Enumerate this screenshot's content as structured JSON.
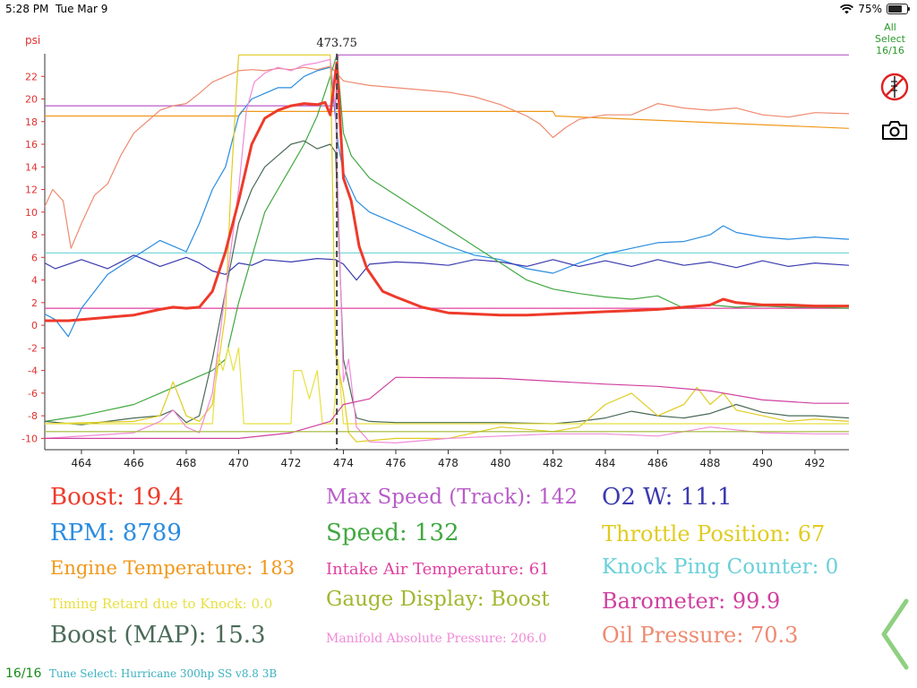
{
  "status": {
    "time": "5:28 PM",
    "date": "Tue Mar 9",
    "battery": "75%",
    "battery_level": 0.75
  },
  "chart_data": {
    "type": "line",
    "y_unit_label": "psi",
    "cursor_label": "473.75",
    "cursor_x": 473.75,
    "xlim": [
      462.6,
      493.3
    ],
    "ylim": [
      -11,
      24
    ],
    "x_ticks": [
      464,
      466,
      468,
      470,
      472,
      474,
      476,
      478,
      480,
      482,
      484,
      486,
      488,
      490,
      492
    ],
    "y_ticks": [
      -10,
      -8,
      -6,
      -4,
      -2,
      0,
      2,
      4,
      6,
      8,
      10,
      12,
      14,
      16,
      18,
      20,
      22
    ],
    "grid": false,
    "series": [
      {
        "name": "Max Speed (Track)",
        "color": "#b85cc8",
        "x": [
          462.6,
          473.7,
          473.8,
          493.3
        ],
        "y": [
          19.4,
          19.4,
          23.9,
          23.9
        ]
      },
      {
        "name": "Engine Temperature",
        "color": "#f0981a",
        "x": [
          462.6,
          470.0,
          470.1,
          482.0,
          482.1,
          493.3
        ],
        "y": [
          18.5,
          18.5,
          18.9,
          18.9,
          18.5,
          17.4
        ]
      },
      {
        "name": "Oil Pressure",
        "color": "#ee8a70",
        "x": [
          462.6,
          462.9,
          463.3,
          463.6,
          464.0,
          464.5,
          465.0,
          465.5,
          466.0,
          466.5,
          467.0,
          467.5,
          468.0,
          468.5,
          469.0,
          469.5,
          470.0,
          470.5,
          471.0,
          471.5,
          472.0,
          472.5,
          473.0,
          473.5,
          474.0,
          475.0,
          476.0,
          477.0,
          478.0,
          479.0,
          480.0,
          481.0,
          481.5,
          482.0,
          482.5,
          483.0,
          484.0,
          485.0,
          486.0,
          487.0,
          488.0,
          489.0,
          490.0,
          491.0,
          492.0,
          493.3
        ],
        "y": [
          10.5,
          12.0,
          11.0,
          6.8,
          9.0,
          11.5,
          12.5,
          15.0,
          17.0,
          18.0,
          19.0,
          19.4,
          19.6,
          20.5,
          21.5,
          22.0,
          22.5,
          22.6,
          22.5,
          22.7,
          22.6,
          22.8,
          22.6,
          22.9,
          21.6,
          21.2,
          21.0,
          20.8,
          20.6,
          20.2,
          19.5,
          18.5,
          17.8,
          16.6,
          17.5,
          18.2,
          18.6,
          18.6,
          19.6,
          19.2,
          19.0,
          19.2,
          18.6,
          18.4,
          18.8,
          18.7
        ]
      },
      {
        "name": "Knock Ping Counter",
        "color": "#6ad0d8",
        "x": [
          462.6,
          493.3
        ],
        "y": [
          6.4,
          6.4
        ]
      },
      {
        "name": "Intake Air Temperature",
        "color": "#e040a0",
        "x": [
          462.6,
          493.3
        ],
        "y": [
          1.5,
          1.5
        ]
      },
      {
        "name": "RPM",
        "color": "#2a8ce0",
        "x": [
          462.6,
          463.0,
          463.5,
          464.0,
          465.0,
          466.0,
          467.0,
          467.5,
          468.0,
          468.5,
          469.0,
          469.5,
          470.0,
          470.5,
          471.0,
          471.5,
          472.0,
          472.5,
          473.0,
          473.5,
          473.8,
          474.0,
          474.5,
          475.0,
          476.0,
          477.0,
          478.0,
          479.0,
          480.0,
          481.0,
          482.0,
          483.0,
          484.0,
          485.0,
          486.0,
          487.0,
          488.0,
          488.5,
          489.0,
          490.0,
          491.0,
          492.0,
          493.3
        ],
        "y": [
          1.0,
          0.5,
          -1.0,
          1.5,
          4.5,
          6.0,
          7.5,
          7.0,
          6.5,
          9.0,
          12.0,
          14.0,
          18.5,
          20.0,
          20.5,
          21.0,
          21.0,
          22.0,
          22.5,
          22.8,
          16.0,
          13.5,
          11.0,
          10.0,
          9.0,
          8.0,
          7.0,
          6.2,
          5.8,
          5.0,
          4.6,
          5.5,
          6.3,
          6.8,
          7.3,
          7.4,
          8.0,
          8.8,
          8.2,
          7.8,
          7.6,
          7.8,
          7.6
        ]
      },
      {
        "name": "O2 W",
        "color": "#3a3ab0",
        "x": [
          462.6,
          463.0,
          464.0,
          465.0,
          466.0,
          467.0,
          468.0,
          468.5,
          469.0,
          469.5,
          470.0,
          470.5,
          471.0,
          472.0,
          473.0,
          473.7,
          474.0,
          474.5,
          475.0,
          476.0,
          477.0,
          478.0,
          479.0,
          480.0,
          481.0,
          482.0,
          483.0,
          484.0,
          485.0,
          486.0,
          487.0,
          488.0,
          489.0,
          490.0,
          491.0,
          492.0,
          493.3
        ],
        "y": [
          5.5,
          5.0,
          5.8,
          5.0,
          6.2,
          5.2,
          6.0,
          5.5,
          4.8,
          4.5,
          5.5,
          5.3,
          5.8,
          5.6,
          5.9,
          5.8,
          5.4,
          4.0,
          5.4,
          5.6,
          5.5,
          5.3,
          5.8,
          5.6,
          5.2,
          5.8,
          5.2,
          5.7,
          5.2,
          5.8,
          5.3,
          5.6,
          5.1,
          5.7,
          5.2,
          5.5,
          5.3
        ]
      },
      {
        "name": "Speed",
        "color": "#40a840",
        "x": [
          462.6,
          464.0,
          465.0,
          466.0,
          467.0,
          468.0,
          469.0,
          469.5,
          470.0,
          470.5,
          471.0,
          471.5,
          472.0,
          472.5,
          473.0,
          473.5,
          473.75,
          474.0,
          474.3,
          475.0,
          476.0,
          477.0,
          478.0,
          479.0,
          480.0,
          481.0,
          482.0,
          483.0,
          484.0,
          485.0,
          486.0,
          487.0,
          488.0,
          489.0,
          490.0,
          491.0,
          492.0,
          493.3
        ],
        "y": [
          -8.5,
          -8.0,
          -7.5,
          -7.0,
          -6.0,
          -5.0,
          -4.0,
          -3.0,
          2.0,
          6.0,
          10.0,
          12.0,
          14.0,
          16.0,
          18.5,
          22.0,
          23.9,
          17.0,
          15.0,
          13.0,
          11.5,
          10.0,
          8.5,
          7.0,
          5.5,
          4.0,
          3.2,
          2.8,
          2.5,
          2.3,
          2.6,
          1.5,
          1.8,
          1.6,
          1.7,
          1.6,
          1.6,
          1.5
        ]
      },
      {
        "name": "Boost (MAP)",
        "color": "#4a6a58",
        "x": [
          462.6,
          464.0,
          465.0,
          466.0,
          467.0,
          467.5,
          468.0,
          468.5,
          469.0,
          469.5,
          470.0,
          470.5,
          471.0,
          471.5,
          472.0,
          472.5,
          473.0,
          473.5,
          473.7,
          474.0,
          474.5,
          475.0,
          476.0,
          478.0,
          480.0,
          482.0,
          483.0,
          484.0,
          485.0,
          486.0,
          487.0,
          488.0,
          489.0,
          490.0,
          491.0,
          492.0,
          493.3
        ],
        "y": [
          -8.5,
          -8.8,
          -8.5,
          -8.2,
          -8.0,
          -7.5,
          -8.6,
          -8.0,
          -3.0,
          3.0,
          9.0,
          12.0,
          14.0,
          15.0,
          16.0,
          16.3,
          15.6,
          16.0,
          15.3,
          -3.0,
          -8.2,
          -8.5,
          -8.6,
          -8.6,
          -8.6,
          -8.7,
          -8.5,
          -8.2,
          -7.6,
          -8.0,
          -8.2,
          -7.8,
          -7.0,
          -7.7,
          -8.0,
          -8.0,
          -8.2
        ]
      },
      {
        "name": "Throttle Position",
        "color": "#e0cc20",
        "x": [
          462.6,
          466.0,
          467.0,
          467.5,
          468.0,
          468.5,
          469.0,
          469.5,
          469.7,
          469.9,
          470.0,
          470.5,
          471.0,
          471.5,
          472.0,
          472.5,
          473.0,
          473.5,
          473.7,
          474.0,
          474.2,
          474.5,
          475.0,
          476.0,
          478.0,
          480.0,
          482.0,
          483.0,
          484.0,
          485.0,
          486.0,
          487.0,
          487.5,
          488.0,
          488.5,
          489.0,
          490.0,
          491.0,
          492.0,
          493.3
        ],
        "y": [
          -8.7,
          -8.5,
          -8.0,
          -5.0,
          -8.0,
          -8.5,
          -7.0,
          1.0,
          12.0,
          20.0,
          23.9,
          23.9,
          23.9,
          23.9,
          23.9,
          23.9,
          23.9,
          23.9,
          -2.5,
          -6.0,
          -9.5,
          -10.3,
          -10.2,
          -10.0,
          -10.0,
          -9.0,
          -9.4,
          -9.0,
          -7.0,
          -6.0,
          -8.0,
          -7.0,
          -5.5,
          -7.0,
          -6.0,
          -7.5,
          -8.0,
          -8.5,
          -8.3,
          -8.5
        ]
      },
      {
        "name": "Timing Retard due to Knock",
        "color": "#e8e040",
        "x": [
          462.6,
          469.0,
          469.2,
          469.4,
          469.6,
          469.8,
          470.0,
          470.2,
          470.5,
          470.8,
          471.0,
          472.0,
          472.1,
          472.4,
          472.7,
          473.0,
          473.2,
          473.6,
          473.8,
          474.0,
          493.3
        ],
        "y": [
          -8.7,
          -8.7,
          -2.5,
          -4.0,
          -2.0,
          -4.0,
          -2.0,
          -8.7,
          -8.7,
          -8.7,
          -8.7,
          -8.7,
          -4.0,
          -4.0,
          -6.5,
          -4.0,
          -8.7,
          -8.7,
          -3.0,
          -8.7,
          -8.7
        ]
      },
      {
        "name": "Manifold Absolute Pressure",
        "color": "#f08ad8",
        "x": [
          462.6,
          466.0,
          467.0,
          467.5,
          468.0,
          468.5,
          469.0,
          469.5,
          470.0,
          470.3,
          470.6,
          471.0,
          471.5,
          472.0,
          472.5,
          473.0,
          473.5,
          473.7,
          474.0,
          474.2,
          474.5,
          475.0,
          476.0,
          478.0,
          480.0,
          482.0,
          484.0,
          486.0,
          488.0,
          490.0,
          492.0,
          493.3
        ],
        "y": [
          -10.0,
          -9.5,
          -8.5,
          -7.5,
          -9.0,
          -9.5,
          -6.0,
          3.0,
          12.0,
          19.0,
          21.5,
          22.3,
          22.8,
          22.5,
          23.0,
          23.2,
          23.5,
          19.0,
          -5.0,
          -3.0,
          -9.0,
          -10.3,
          -10.4,
          -10.0,
          -9.8,
          -9.6,
          -9.6,
          -9.8,
          -9.0,
          -9.5,
          -9.6,
          -9.6
        ]
      },
      {
        "name": "Barometer",
        "color": "#d040a0",
        "x": [
          462.6,
          470.0,
          472.0,
          473.5,
          474.0,
          475.0,
          476.0,
          480.0,
          484.0,
          486.0,
          488.0,
          490.0,
          492.0,
          493.3
        ],
        "y": [
          -10.0,
          -10.0,
          -9.5,
          -8.5,
          -7.0,
          -6.5,
          -4.6,
          -4.7,
          -5.2,
          -5.4,
          -5.8,
          -6.6,
          -6.9,
          -6.9
        ]
      },
      {
        "name": "Gauge Display",
        "color": "#a0b830",
        "x": [
          462.6,
          493.3
        ],
        "y": [
          -9.4,
          -9.4
        ]
      },
      {
        "name": "Boost",
        "color": "#ee3a2a",
        "x": [
          462.6,
          463.5,
          464.0,
          465.0,
          466.0,
          467.0,
          467.5,
          468.0,
          468.5,
          469.0,
          469.5,
          470.0,
          470.5,
          471.0,
          471.5,
          472.0,
          472.5,
          473.0,
          473.3,
          473.5,
          473.75,
          474.0,
          474.3,
          474.6,
          474.9,
          475.2,
          475.5,
          476.0,
          477.0,
          478.0,
          479.0,
          480.0,
          481.0,
          482.0,
          483.0,
          484.0,
          485.0,
          486.0,
          487.0,
          488.0,
          488.5,
          489.0,
          490.0,
          491.0,
          492.0,
          493.3
        ],
        "y": [
          0.4,
          0.4,
          0.5,
          0.7,
          0.9,
          1.4,
          1.6,
          1.5,
          1.6,
          3.0,
          6.5,
          11.0,
          16.0,
          18.3,
          19.0,
          19.4,
          19.6,
          19.5,
          19.7,
          18.6,
          23.2,
          13.0,
          11.0,
          7.0,
          5.0,
          4.0,
          3.0,
          2.5,
          1.6,
          1.1,
          1.0,
          0.9,
          0.9,
          1.0,
          1.1,
          1.2,
          1.3,
          1.4,
          1.6,
          1.8,
          2.3,
          2.0,
          1.8,
          1.8,
          1.7,
          1.7
        ]
      }
    ]
  },
  "side": {
    "all_label": "All",
    "select_label": "Select",
    "select_count": "16/16",
    "rpm_icon": "no-gauge-icon",
    "camera_icon": "camera-icon"
  },
  "readouts": [
    {
      "text": "Boost: 19.4",
      "color": "#ee3a2a",
      "size": 26
    },
    {
      "text": "RPM: 8789",
      "color": "#2a8ce0",
      "size": 26
    },
    {
      "text": "Engine Temperature: 183",
      "color": "#f0981a",
      "size": 21
    },
    {
      "text": "Timing Retard due to Knock: 0.0",
      "color": "#e8e040",
      "size": 15
    },
    {
      "text": "Boost (MAP): 15.3",
      "color": "#4a6a58",
      "size": 26
    },
    {
      "text": "Max Speed (Track): 142",
      "color": "#b85cc8",
      "size": 23
    },
    {
      "text": "Speed: 132",
      "color": "#40a840",
      "size": 26
    },
    {
      "text": "Intake Air Temperature: 61",
      "color": "#e040a0",
      "size": 18
    },
    {
      "text": "Gauge Display: Boost",
      "color": "#a0b830",
      "size": 23
    },
    {
      "text": "Manifold Absolute Pressure: 206.0",
      "color": "#f08ad8",
      "size": 14
    },
    {
      "text": "O2 W: 11.1",
      "color": "#3a3ab0",
      "size": 26
    },
    {
      "text": "Throttle Position: 67",
      "color": "#e0cc20",
      "size": 24
    },
    {
      "text": "Knock Ping Counter: 0",
      "color": "#6ad0d8",
      "size": 23
    },
    {
      "text": "Barometer: 99.9",
      "color": "#d040a0",
      "size": 24
    },
    {
      "text": "Oil Pressure: 70.3",
      "color": "#ee8a70",
      "size": 24
    }
  ],
  "footer": {
    "count": "16/16",
    "tune": "Tune Select: Hurricane 300hp SS v8.8 3B"
  },
  "nav": {
    "back_icon": "chevron-left-icon"
  }
}
